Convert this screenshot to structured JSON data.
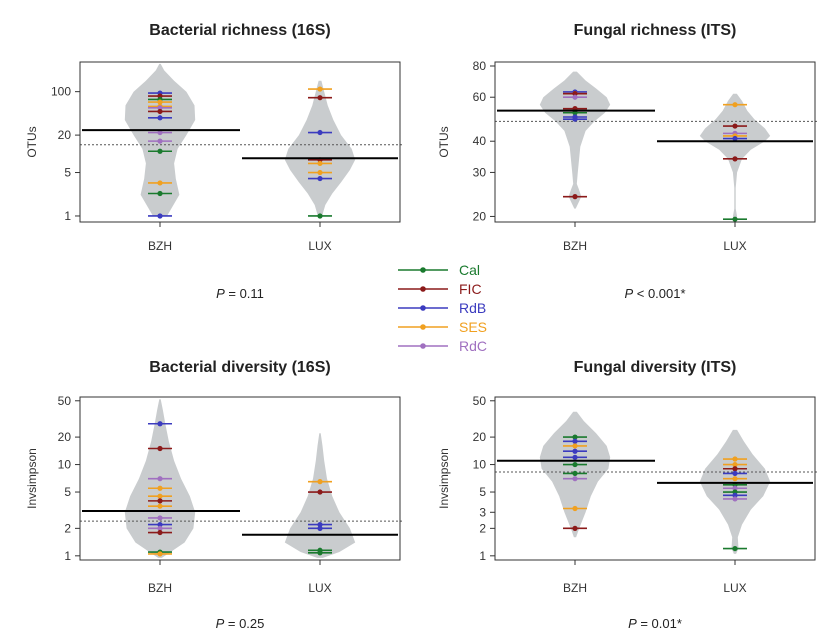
{
  "legend": {
    "items": [
      {
        "label": "Cal",
        "color": "#1a7a2e"
      },
      {
        "label": "FIC",
        "color": "#8b1a1a"
      },
      {
        "label": "RdB",
        "color": "#3b3bbf"
      },
      {
        "label": "SES",
        "color": "#f0a020"
      },
      {
        "label": "RdC",
        "color": "#a070c0"
      }
    ]
  },
  "colors": {
    "violin": "#c9ccce",
    "mean_line": "#000000",
    "overall_line": "#555555"
  },
  "chart_data": [
    {
      "type": "beanplot",
      "title": "Bacterial richness (16S)",
      "ylabel": "OTUs",
      "scale": "log",
      "ylim": [
        0.8,
        300
      ],
      "yticks": [
        1,
        5,
        20,
        100
      ],
      "categories": [
        "BZH",
        "LUX"
      ],
      "overall_mean": 14,
      "group_means": [
        24,
        8.5
      ],
      "pvalue_label": "P",
      "pvalue_text": " = 0.11",
      "points": [
        [
          {
            "site": "RdB",
            "v": 95
          },
          {
            "site": "FIC",
            "v": 85
          },
          {
            "site": "Cal",
            "v": 75
          },
          {
            "site": "SES",
            "v": 68
          },
          {
            "site": "SES",
            "v": 58
          },
          {
            "site": "RdC",
            "v": 55
          },
          {
            "site": "FIC",
            "v": 48
          },
          {
            "site": "RdB",
            "v": 38
          },
          {
            "site": "RdC",
            "v": 22
          },
          {
            "site": "RdC",
            "v": 16
          },
          {
            "site": "Cal",
            "v": 11
          },
          {
            "site": "SES",
            "v": 3.4
          },
          {
            "site": "Cal",
            "v": 2.3
          },
          {
            "site": "RdB",
            "v": 1
          }
        ],
        [
          {
            "site": "SES",
            "v": 110
          },
          {
            "site": "FIC",
            "v": 80
          },
          {
            "site": "RdB",
            "v": 22
          },
          {
            "site": "FIC",
            "v": 8
          },
          {
            "site": "SES",
            "v": 7
          },
          {
            "site": "SES",
            "v": 5
          },
          {
            "site": "RdB",
            "v": 4
          },
          {
            "site": "Cal",
            "v": 1
          }
        ]
      ],
      "violins": [
        [
          [
            1,
            0.2
          ],
          [
            2.2,
            0.55
          ],
          [
            4,
            0.45
          ],
          [
            7,
            0.4
          ],
          [
            12,
            0.5
          ],
          [
            20,
            0.75
          ],
          [
            35,
            1
          ],
          [
            60,
            0.98
          ],
          [
            100,
            0.75
          ],
          [
            150,
            0.4
          ],
          [
            220,
            0.12
          ],
          [
            280,
            0.02
          ]
        ],
        [
          [
            1,
            0.06
          ],
          [
            1.5,
            0.15
          ],
          [
            2.3,
            0.35
          ],
          [
            3.5,
            0.6
          ],
          [
            5.5,
            0.85
          ],
          [
            8,
            1
          ],
          [
            12,
            0.9
          ],
          [
            20,
            0.6
          ],
          [
            35,
            0.38
          ],
          [
            60,
            0.22
          ],
          [
            100,
            0.12
          ],
          [
            150,
            0.04
          ]
        ]
      ]
    },
    {
      "type": "beanplot",
      "title": "Fungal richness (ITS)",
      "ylabel": "OTUs",
      "scale": "log",
      "ylim": [
        19,
        83
      ],
      "yticks": [
        20,
        30,
        40,
        60,
        80
      ],
      "categories": [
        "BZH",
        "LUX"
      ],
      "overall_mean": 48,
      "group_means": [
        53,
        40
      ],
      "pvalue_label": "P",
      "pvalue_text": " < 0.001*",
      "points": [
        [
          {
            "site": "RdB",
            "v": 63
          },
          {
            "site": "SES",
            "v": 62
          },
          {
            "site": "FIC",
            "v": 62
          },
          {
            "site": "RdC",
            "v": 60
          },
          {
            "site": "FIC",
            "v": 54
          },
          {
            "site": "Cal",
            "v": 52
          },
          {
            "site": "RdB",
            "v": 50
          },
          {
            "site": "RdB",
            "v": 49
          },
          {
            "site": "FIC",
            "v": 24
          }
        ],
        [
          {
            "site": "SES",
            "v": 56
          },
          {
            "site": "FIC",
            "v": 46
          },
          {
            "site": "RdC",
            "v": 43
          },
          {
            "site": "SES",
            "v": 42
          },
          {
            "site": "RdB",
            "v": 41
          },
          {
            "site": "FIC",
            "v": 34
          },
          {
            "site": "Cal",
            "v": 19.5
          }
        ]
      ],
      "violins": [
        [
          [
            21.5,
            0.02
          ],
          [
            23,
            0.12
          ],
          [
            24,
            0.18
          ],
          [
            25.5,
            0.12
          ],
          [
            27,
            0.05
          ],
          [
            30,
            0.08
          ],
          [
            38,
            0.15
          ],
          [
            44,
            0.3
          ],
          [
            48,
            0.55
          ],
          [
            52,
            0.85
          ],
          [
            56,
            1
          ],
          [
            60,
            0.9
          ],
          [
            65,
            0.6
          ],
          [
            70,
            0.3
          ],
          [
            76,
            0.05
          ]
        ],
        [
          [
            19,
            0.02
          ],
          [
            20,
            0.06
          ],
          [
            21.5,
            0.02
          ],
          [
            26,
            0.02
          ],
          [
            30,
            0.06
          ],
          [
            34,
            0.2
          ],
          [
            37,
            0.45
          ],
          [
            40,
            0.85
          ],
          [
            42,
            1
          ],
          [
            45,
            0.85
          ],
          [
            49,
            0.55
          ],
          [
            53,
            0.35
          ],
          [
            58,
            0.2
          ],
          [
            62,
            0.05
          ]
        ]
      ]
    },
    {
      "type": "beanplot",
      "title": "Bacterial diversity (16S)",
      "ylabel": "Invsimpson",
      "scale": "log",
      "ylim": [
        0.9,
        55
      ],
      "yticks": [
        1,
        2,
        5,
        10,
        20,
        50
      ],
      "categories": [
        "BZH",
        "LUX"
      ],
      "overall_mean": 2.4,
      "group_means": [
        3.1,
        1.7
      ],
      "pvalue_label": "P",
      "pvalue_text": " = 0.25",
      "points": [
        [
          {
            "site": "RdB",
            "v": 28
          },
          {
            "site": "FIC",
            "v": 15
          },
          {
            "site": "RdC",
            "v": 7
          },
          {
            "site": "SES",
            "v": 5.5
          },
          {
            "site": "SES",
            "v": 4.5
          },
          {
            "site": "FIC",
            "v": 4
          },
          {
            "site": "SES",
            "v": 3.5
          },
          {
            "site": "RdC",
            "v": 2.6
          },
          {
            "site": "RdB",
            "v": 2.2
          },
          {
            "site": "RdC",
            "v": 2
          },
          {
            "site": "FIC",
            "v": 1.8
          },
          {
            "site": "Cal",
            "v": 1.1
          },
          {
            "site": "SES",
            "v": 1.05
          }
        ],
        [
          {
            "site": "SES",
            "v": 6.5
          },
          {
            "site": "FIC",
            "v": 5
          },
          {
            "site": "RdB",
            "v": 2.2
          },
          {
            "site": "RdB",
            "v": 2
          },
          {
            "site": "Cal",
            "v": 1.15
          },
          {
            "site": "Cal",
            "v": 1.08
          }
        ]
      ],
      "violins": [
        [
          [
            0.95,
            0.05
          ],
          [
            1.1,
            0.3
          ],
          [
            1.4,
            0.7
          ],
          [
            2,
            0.95
          ],
          [
            3,
            1
          ],
          [
            4.5,
            0.85
          ],
          [
            7,
            0.6
          ],
          [
            11,
            0.4
          ],
          [
            18,
            0.25
          ],
          [
            28,
            0.15
          ],
          [
            40,
            0.08
          ],
          [
            52,
            0.02
          ]
        ],
        [
          [
            0.95,
            0.08
          ],
          [
            1.1,
            0.55
          ],
          [
            1.4,
            1
          ],
          [
            2,
            0.85
          ],
          [
            3,
            0.55
          ],
          [
            4.5,
            0.35
          ],
          [
            7,
            0.2
          ],
          [
            11,
            0.12
          ],
          [
            16,
            0.07
          ],
          [
            22,
            0.02
          ]
        ]
      ]
    },
    {
      "type": "beanplot",
      "title": "Fungal diversity (ITS)",
      "ylabel": "Invsimpson",
      "scale": "log",
      "ylim": [
        0.9,
        55
      ],
      "yticks": [
        1,
        2,
        3,
        5,
        10,
        20,
        50
      ],
      "categories": [
        "BZH",
        "LUX"
      ],
      "overall_mean": 8.3,
      "group_means": [
        11,
        6.3
      ],
      "pvalue_label": "P",
      "pvalue_text": " = 0.01*",
      "points": [
        [
          {
            "site": "Cal",
            "v": 20
          },
          {
            "site": "RdB",
            "v": 18
          },
          {
            "site": "SES",
            "v": 16
          },
          {
            "site": "RdB",
            "v": 14
          },
          {
            "site": "RdB",
            "v": 12
          },
          {
            "site": "Cal",
            "v": 10
          },
          {
            "site": "Cal",
            "v": 8
          },
          {
            "site": "RdC",
            "v": 7
          },
          {
            "site": "SES",
            "v": 3.3
          },
          {
            "site": "FIC",
            "v": 2
          }
        ],
        [
          {
            "site": "SES",
            "v": 11.5
          },
          {
            "site": "SES",
            "v": 10
          },
          {
            "site": "FIC",
            "v": 9
          },
          {
            "site": "RdB",
            "v": 8
          },
          {
            "site": "SES",
            "v": 7
          },
          {
            "site": "Cal",
            "v": 6
          },
          {
            "site": "RdC",
            "v": 5.5
          },
          {
            "site": "Cal",
            "v": 5
          },
          {
            "site": "RdB",
            "v": 4.6
          },
          {
            "site": "RdC",
            "v": 4.2
          },
          {
            "site": "Cal",
            "v": 1.2
          }
        ]
      ],
      "violins": [
        [
          [
            1.6,
            0.03
          ],
          [
            2,
            0.12
          ],
          [
            3,
            0.3
          ],
          [
            4.5,
            0.45
          ],
          [
            6.5,
            0.65
          ],
          [
            9,
            0.95
          ],
          [
            12,
            1
          ],
          [
            16,
            0.9
          ],
          [
            22,
            0.6
          ],
          [
            30,
            0.25
          ],
          [
            38,
            0.05
          ]
        ],
        [
          [
            1.05,
            0.03
          ],
          [
            1.2,
            0.1
          ],
          [
            1.6,
            0.08
          ],
          [
            2.2,
            0.2
          ],
          [
            3.2,
            0.45
          ],
          [
            4.5,
            0.8
          ],
          [
            6.5,
            1
          ],
          [
            9,
            0.85
          ],
          [
            13,
            0.5
          ],
          [
            18,
            0.25
          ],
          [
            24,
            0.06
          ]
        ]
      ]
    }
  ]
}
